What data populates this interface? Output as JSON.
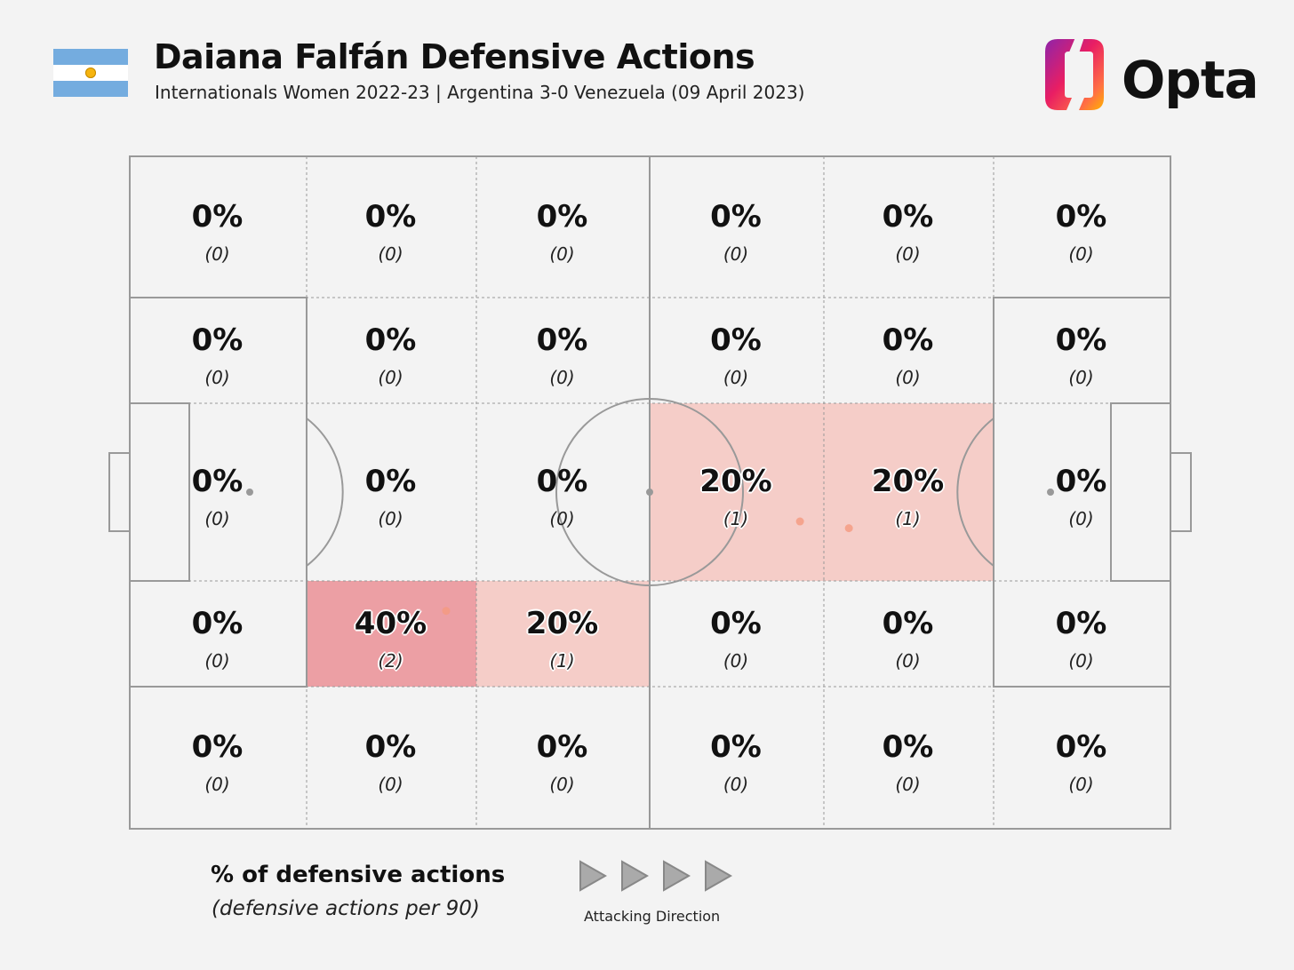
{
  "header": {
    "title": "Daiana Falfán Defensive Actions",
    "subtitle": "Internationals Women 2022-23 | Argentina 3-0 Venezuela (09 April 2023)",
    "brand": "Opta",
    "brand_colors": [
      "#8e24aa",
      "#e91e63",
      "#ff7043",
      "#ffb300"
    ]
  },
  "legend": {
    "title": "% of defensive actions",
    "subtitle": "(defensive actions per 90)",
    "direction_label": "Attacking Direction"
  },
  "chart_data": {
    "type": "heatmap",
    "title": "Daiana Falfán Defensive Actions",
    "zone_columns": 6,
    "zone_rows": 5,
    "attacking_direction": "left-to-right",
    "color_scale": {
      "zero": "#f3f3f3",
      "low": "#f5cdc8",
      "high": "#ec9fa4"
    },
    "zones": [
      [
        {
          "pct": "0%",
          "count": "(0)",
          "value": 0
        },
        {
          "pct": "0%",
          "count": "(0)",
          "value": 0
        },
        {
          "pct": "0%",
          "count": "(0)",
          "value": 0
        },
        {
          "pct": "0%",
          "count": "(0)",
          "value": 0
        },
        {
          "pct": "0%",
          "count": "(0)",
          "value": 0
        },
        {
          "pct": "0%",
          "count": "(0)",
          "value": 0
        }
      ],
      [
        {
          "pct": "0%",
          "count": "(0)",
          "value": 0
        },
        {
          "pct": "0%",
          "count": "(0)",
          "value": 0
        },
        {
          "pct": "0%",
          "count": "(0)",
          "value": 0
        },
        {
          "pct": "0%",
          "count": "(0)",
          "value": 0
        },
        {
          "pct": "0%",
          "count": "(0)",
          "value": 0
        },
        {
          "pct": "0%",
          "count": "(0)",
          "value": 0
        }
      ],
      [
        {
          "pct": "0%",
          "count": "(0)",
          "value": 0
        },
        {
          "pct": "0%",
          "count": "(0)",
          "value": 0
        },
        {
          "pct": "0%",
          "count": "(0)",
          "value": 0
        },
        {
          "pct": "20%",
          "count": "(1)",
          "value": 20
        },
        {
          "pct": "20%",
          "count": "(1)",
          "value": 20
        },
        {
          "pct": "0%",
          "count": "(0)",
          "value": 0
        }
      ],
      [
        {
          "pct": "0%",
          "count": "(0)",
          "value": 0
        },
        {
          "pct": "40%",
          "count": "(2)",
          "value": 40
        },
        {
          "pct": "20%",
          "count": "(1)",
          "value": 20
        },
        {
          "pct": "0%",
          "count": "(0)",
          "value": 0
        },
        {
          "pct": "0%",
          "count": "(0)",
          "value": 0
        },
        {
          "pct": "0%",
          "count": "(0)",
          "value": 0
        }
      ],
      [
        {
          "pct": "0%",
          "count": "(0)",
          "value": 0
        },
        {
          "pct": "0%",
          "count": "(0)",
          "value": 0
        },
        {
          "pct": "0%",
          "count": "(0)",
          "value": 0
        },
        {
          "pct": "0%",
          "count": "(0)",
          "value": 0
        },
        {
          "pct": "0%",
          "count": "(0)",
          "value": 0
        },
        {
          "pct": "0%",
          "count": "(0)",
          "value": 0
        }
      ]
    ],
    "action_points": [
      {
        "x": 64.4,
        "y": 45.7
      },
      {
        "x": 69.1,
        "y": 44.7
      },
      {
        "x": 30.4,
        "y": 32.4
      }
    ],
    "pitch_x_range": [
      0,
      100
    ],
    "pitch_y_range": [
      0,
      100
    ]
  }
}
